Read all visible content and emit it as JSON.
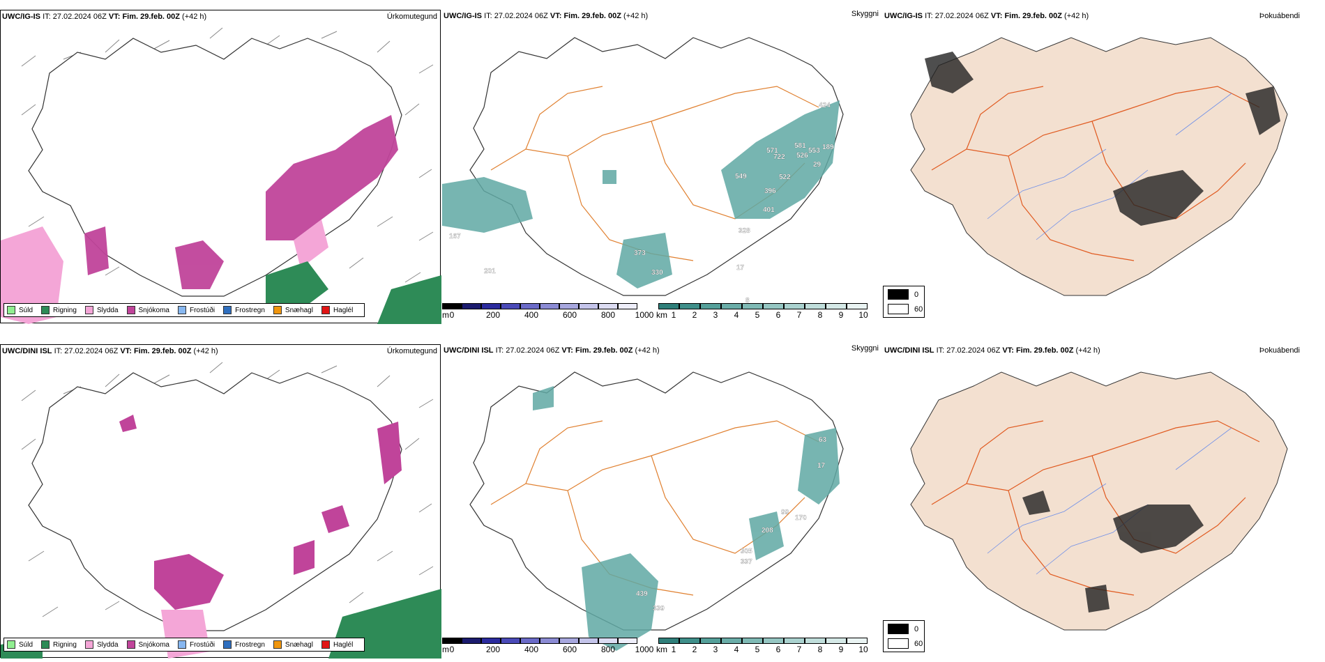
{
  "rows": [
    {
      "model": "UWC/IG-IS",
      "it_label": "IT:",
      "it_value": "27.02.2024 06Z",
      "vt_label": "VT:",
      "vt_value": "Fim. 29.feb. 00Z",
      "lead": "(+42 h)",
      "precip_title": "Úrkomutegund",
      "cloud_title": "Skyggni",
      "fog_title": "Þokuábendi",
      "cloud_numbers": [
        "424",
        "581",
        "571",
        "722",
        "526",
        "553",
        "189",
        "549",
        "522",
        "396",
        "401",
        "328",
        "373",
        "330",
        "17",
        "167",
        "201",
        "8",
        "29"
      ]
    },
    {
      "model": "UWC/DINI ISL",
      "it_label": "IT:",
      "it_value": "27.02.2024 06Z",
      "vt_label": "VT:",
      "vt_value": "Fim. 29.feb. 00Z",
      "lead": "(+42 h)",
      "precip_title": "Úrkomutegund",
      "cloud_title": "Skyggni",
      "fog_title": "Þokuábendi",
      "cloud_numbers": [
        "63",
        "17",
        "99",
        "208",
        "170",
        "305",
        "337",
        "439",
        "339"
      ]
    }
  ],
  "precip_legend": [
    {
      "label": "Súld",
      "color": "#90ee90"
    },
    {
      "label": "Rigning",
      "color": "#2e8b57"
    },
    {
      "label": "Slydda",
      "color": "#f4a6d7"
    },
    {
      "label": "Snjókoma",
      "color": "#c0449a"
    },
    {
      "label": "Frostúði",
      "color": "#87b7f0"
    },
    {
      "label": "Frostregn",
      "color": "#2f6fbf"
    },
    {
      "label": "Snæhagl",
      "color": "#f0960e"
    },
    {
      "label": "Haglél",
      "color": "#e01414"
    }
  ],
  "ceiling_scale": {
    "unit": "m",
    "ticks": [
      "0",
      "200",
      "400",
      "600",
      "800",
      "1000"
    ],
    "colors": [
      "#000000",
      "#1b1b6e",
      "#2b2b9e",
      "#4a4ab8",
      "#6b6bc8",
      "#8b8bd4",
      "#a7a7de",
      "#c4c4ea",
      "#dcdcf2",
      "#eeeefa"
    ]
  },
  "visibility_scale": {
    "unit": "km",
    "ticks": [
      "1",
      "2",
      "3",
      "4",
      "5",
      "6",
      "7",
      "8",
      "9",
      "10"
    ],
    "colors": [
      "#2f7f7a",
      "#3f8f8a",
      "#55a09a",
      "#6aada8",
      "#7fbab5",
      "#95c6c2",
      "#aad2cf",
      "#c0dedb",
      "#d5e9e7",
      "#eaf4f3"
    ]
  },
  "fog_legend": [
    {
      "label": "0",
      "color": "#000000"
    },
    {
      "label": "60",
      "color": "#ffffff"
    }
  ],
  "colors": {
    "snow": "#c0449a",
    "sleet": "#f4a6d7",
    "rain": "#2e8b57",
    "land_fog": "#f3e0d0",
    "roads": "#e05a20",
    "rivers": "#6f8fe8",
    "teal": "#5fa8a3"
  }
}
